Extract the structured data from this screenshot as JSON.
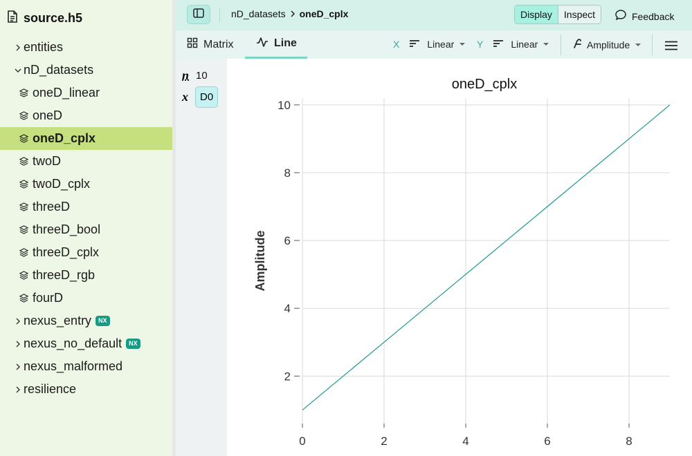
{
  "app": {
    "file_name": "source.h5"
  },
  "sidebar": {
    "items": [
      {
        "label": "entities",
        "kind": "group",
        "level": 0,
        "expanded": false
      },
      {
        "label": "nD_datasets",
        "kind": "group",
        "level": 0,
        "expanded": true
      },
      {
        "label": "oneD_linear",
        "kind": "dataset",
        "level": 1
      },
      {
        "label": "oneD",
        "kind": "dataset",
        "level": 1
      },
      {
        "label": "oneD_cplx",
        "kind": "dataset",
        "level": 1,
        "selected": true
      },
      {
        "label": "twoD",
        "kind": "dataset",
        "level": 1
      },
      {
        "label": "twoD_cplx",
        "kind": "dataset",
        "level": 1
      },
      {
        "label": "threeD",
        "kind": "dataset",
        "level": 1
      },
      {
        "label": "threeD_bool",
        "kind": "dataset",
        "level": 1
      },
      {
        "label": "threeD_cplx",
        "kind": "dataset",
        "level": 1
      },
      {
        "label": "threeD_rgb",
        "kind": "dataset",
        "level": 1
      },
      {
        "label": "fourD",
        "kind": "dataset",
        "level": 1
      },
      {
        "label": "nexus_entry",
        "kind": "group",
        "level": 0,
        "expanded": false,
        "badge": "NX"
      },
      {
        "label": "nexus_no_default",
        "kind": "group",
        "level": 0,
        "expanded": false,
        "badge": "NX"
      },
      {
        "label": "nexus_malformed",
        "kind": "group",
        "level": 0,
        "expanded": false
      },
      {
        "label": "resilience",
        "kind": "group",
        "level": 0,
        "expanded": false
      }
    ]
  },
  "toolbar": {
    "breadcrumb": [
      "nD_datasets",
      "oneD_cplx"
    ],
    "modes": [
      {
        "label": "Display",
        "active": true
      },
      {
        "label": "Inspect",
        "active": false
      }
    ],
    "feedback_label": "Feedback"
  },
  "tabs": [
    {
      "label": "Matrix",
      "active": false,
      "icon": "matrix-icon"
    },
    {
      "label": "Line",
      "active": true,
      "icon": "line-chart-icon"
    }
  ],
  "controls": {
    "x_axis": {
      "label": "X",
      "scale": "Linear"
    },
    "y_axis": {
      "label": "Y",
      "scale": "Linear"
    },
    "complex_visualization": "Amplitude"
  },
  "dimensions": {
    "size_symbol": "n",
    "size_value": "10",
    "axis_symbol": "x",
    "axis_chip": "D0"
  },
  "colors": {
    "accent": "#7ad5c4",
    "selected_row": "#c6df7f",
    "line": "#1a9a8a",
    "badge": "#1a9a83"
  },
  "chart_data": {
    "type": "line",
    "title": "oneD_cplx",
    "xlabel": "",
    "ylabel": "Amplitude",
    "x": [
      0,
      1,
      2,
      3,
      4,
      5,
      6,
      7,
      8,
      9
    ],
    "series": [
      {
        "values": [
          1,
          2,
          3,
          4,
          5,
          6,
          7,
          8,
          9,
          10
        ]
      }
    ],
    "xlim": [
      0,
      9
    ],
    "ylim": [
      0.6,
      10.2
    ],
    "xticks": [
      0,
      2,
      4,
      6,
      8
    ],
    "yticks": [
      2,
      4,
      6,
      8,
      10
    ],
    "grid": true
  }
}
